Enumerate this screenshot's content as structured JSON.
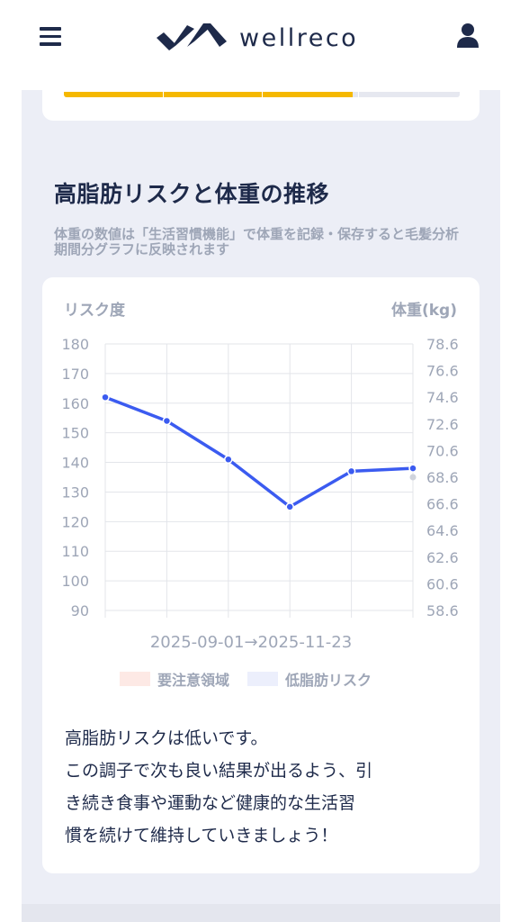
{
  "header": {
    "logo_text": "wellreco",
    "menu_icon": "hamburger-menu-icon",
    "user_icon": "user-icon"
  },
  "progress": {
    "fill_fraction": 0.73,
    "color": "#f5b800"
  },
  "section": {
    "title": "高脂肪リスクと体重の推移",
    "subtitle": "体重の数値は「生活習慣機能」で体重を記録・保存すると毛髪分析期間分グラフに反映されます"
  },
  "chart_data": {
    "type": "line",
    "left_axis_label": "リスク度",
    "right_axis_label": "体重(kg)",
    "y_left_ticks": [
      "180",
      "170",
      "160",
      "150",
      "140",
      "130",
      "120",
      "110",
      "100",
      "90"
    ],
    "y_right_ticks": [
      "78.6",
      "76.6",
      "74.6",
      "72.6",
      "70.6",
      "68.6",
      "66.6",
      "64.6",
      "62.6",
      "60.6",
      "58.6"
    ],
    "ylim_left": [
      90,
      180
    ],
    "ylim_right": [
      58.6,
      78.6
    ],
    "x_label": "2025-09-01→2025-11-23",
    "grid": true,
    "series": [
      {
        "color": "#3b5bf0",
        "values": [
          162,
          154,
          141,
          125,
          137,
          138
        ]
      }
    ],
    "secondary_point": {
      "value": 135,
      "color": "#cfd3dc"
    },
    "legend": [
      {
        "label": "要注意領域",
        "color": "#fde9e5"
      },
      {
        "label": "低脂肪リスク",
        "color": "#eceffc"
      }
    ]
  },
  "message": {
    "lines": [
      "高脂肪リスクは低いです。",
      "この調子で次も良い結果が出るよう、引",
      "き続き食事や運動など健康的な生活習",
      "慣を続けて維持していきましょう！"
    ]
  }
}
